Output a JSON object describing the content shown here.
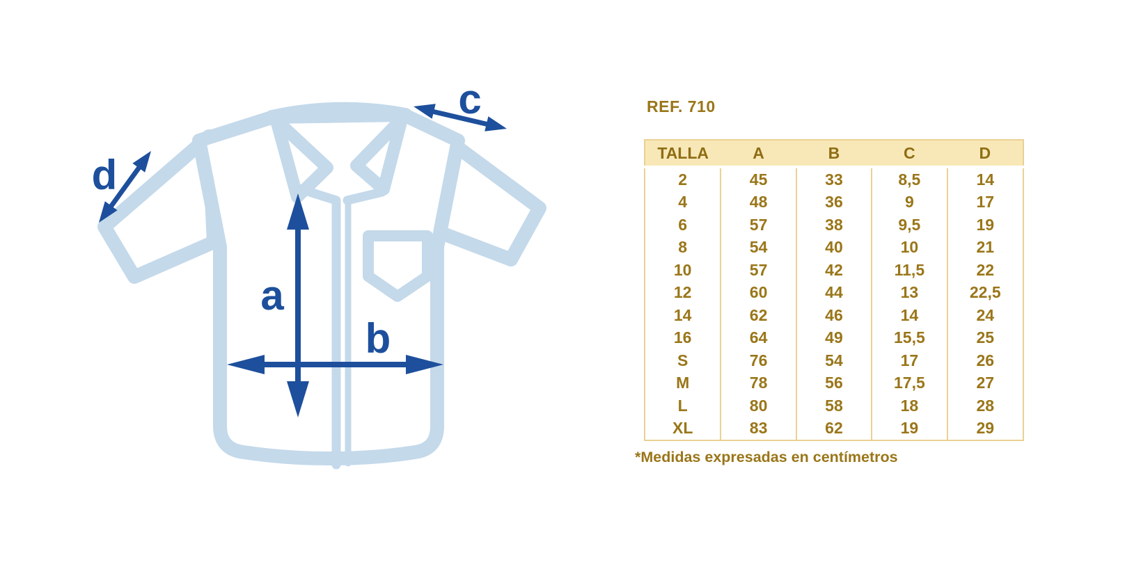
{
  "colors": {
    "shirt-blue": "#C4D9EA",
    "arrow-blue": "#1D4F9C",
    "gold-text": "#9A7619",
    "header-gold": "#8E6D13",
    "header-bg": "#F8E8B8",
    "table-border": "#EAD193"
  },
  "diagram": {
    "labels": {
      "a": "a",
      "b": "b",
      "c": "c",
      "d": "d"
    }
  },
  "panel": {
    "ref_label": "REF. 710",
    "footnote": "*Medidas expresadas en centímetros"
  },
  "table": {
    "columns": [
      "TALLA",
      "A",
      "B",
      "C",
      "D"
    ],
    "rows": [
      [
        "2",
        "45",
        "33",
        "8,5",
        "14"
      ],
      [
        "4",
        "48",
        "36",
        "9",
        "17"
      ],
      [
        "6",
        "57",
        "38",
        "9,5",
        "19"
      ],
      [
        "8",
        "54",
        "40",
        "10",
        "21"
      ],
      [
        "10",
        "57",
        "42",
        "11,5",
        "22"
      ],
      [
        "12",
        "60",
        "44",
        "13",
        "22,5"
      ],
      [
        "14",
        "62",
        "46",
        "14",
        "24"
      ],
      [
        "16",
        "64",
        "49",
        "15,5",
        "25"
      ],
      [
        "S",
        "76",
        "54",
        "17",
        "26"
      ],
      [
        "M",
        "78",
        "56",
        "17,5",
        "27"
      ],
      [
        "L",
        "80",
        "58",
        "18",
        "28"
      ],
      [
        "XL",
        "83",
        "62",
        "19",
        "29"
      ]
    ]
  }
}
